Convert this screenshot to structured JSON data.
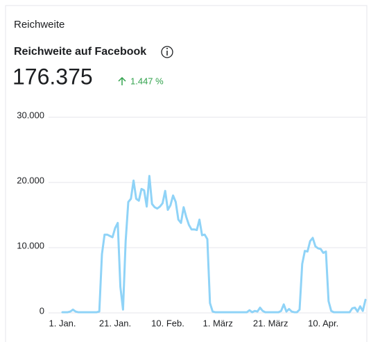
{
  "chart_data": {
    "type": "line",
    "card_title": "Reichweite",
    "title": "Reichweite auf Facebook",
    "total": "176.375",
    "change": "1.447 %",
    "color": "#8fd3f7",
    "grid": true,
    "ylim": [
      0,
      30000
    ],
    "yticks": [
      0,
      {
        "value": 10000,
        "label": "10.000"
      },
      {
        "value": 20000,
        "label": "20.000"
      },
      {
        "value": 30000,
        "label": "30.000"
      }
    ],
    "categories": [
      "1. Jan.",
      null,
      null,
      null,
      null,
      null,
      null,
      null,
      null,
      null,
      null,
      null,
      null,
      null,
      null,
      null,
      null,
      null,
      null,
      null,
      "21. Jan.",
      null,
      null,
      null,
      null,
      null,
      null,
      null,
      null,
      null,
      null,
      null,
      null,
      null,
      null,
      null,
      null,
      null,
      null,
      null,
      "10. Feb.",
      null,
      null,
      null,
      null,
      null,
      null,
      null,
      null,
      null,
      null,
      null,
      null,
      null,
      null,
      null,
      null,
      null,
      null,
      "1. März",
      null,
      null,
      null,
      null,
      null,
      null,
      null,
      null,
      null,
      null,
      null,
      null,
      null,
      null,
      null,
      null,
      null,
      null,
      null,
      "21. März",
      null,
      null,
      null,
      null,
      null,
      null,
      null,
      null,
      null,
      null,
      null,
      null,
      null,
      null,
      null,
      null,
      null,
      null,
      null,
      "10. Apr.",
      null,
      null,
      null,
      null,
      null,
      null,
      null,
      null,
      null,
      null,
      null,
      null,
      null,
      null,
      null,
      null
    ],
    "values": [
      100,
      100,
      100,
      200,
      500,
      200,
      100,
      100,
      100,
      100,
      100,
      100,
      100,
      100,
      200,
      9000,
      12000,
      12000,
      11800,
      11600,
      13000,
      13800,
      4000,
      500,
      11000,
      17000,
      17500,
      20300,
      17500,
      17200,
      19000,
      18800,
      16300,
      21000,
      16700,
      16200,
      16000,
      16300,
      16800,
      18700,
      15800,
      16500,
      18000,
      17000,
      14300,
      13800,
      16200,
      14700,
      13500,
      12800,
      12800,
      12700,
      14300,
      11900,
      12000,
      11300,
      1500,
      200,
      100,
      100,
      100,
      100,
      100,
      100,
      100,
      100,
      100,
      100,
      100,
      100,
      100,
      400,
      100,
      300,
      200,
      800,
      300,
      100,
      100,
      100,
      100,
      100,
      100,
      300,
      1300,
      200,
      600,
      200,
      100,
      100,
      500,
      7500,
      9500,
      9400,
      11000,
      11500,
      10200,
      9900,
      9800,
      9200,
      9400,
      1800,
      300,
      100,
      100,
      100,
      100,
      100,
      100,
      100,
      700,
      800,
      200,
      1000,
      300,
      2000
    ]
  }
}
